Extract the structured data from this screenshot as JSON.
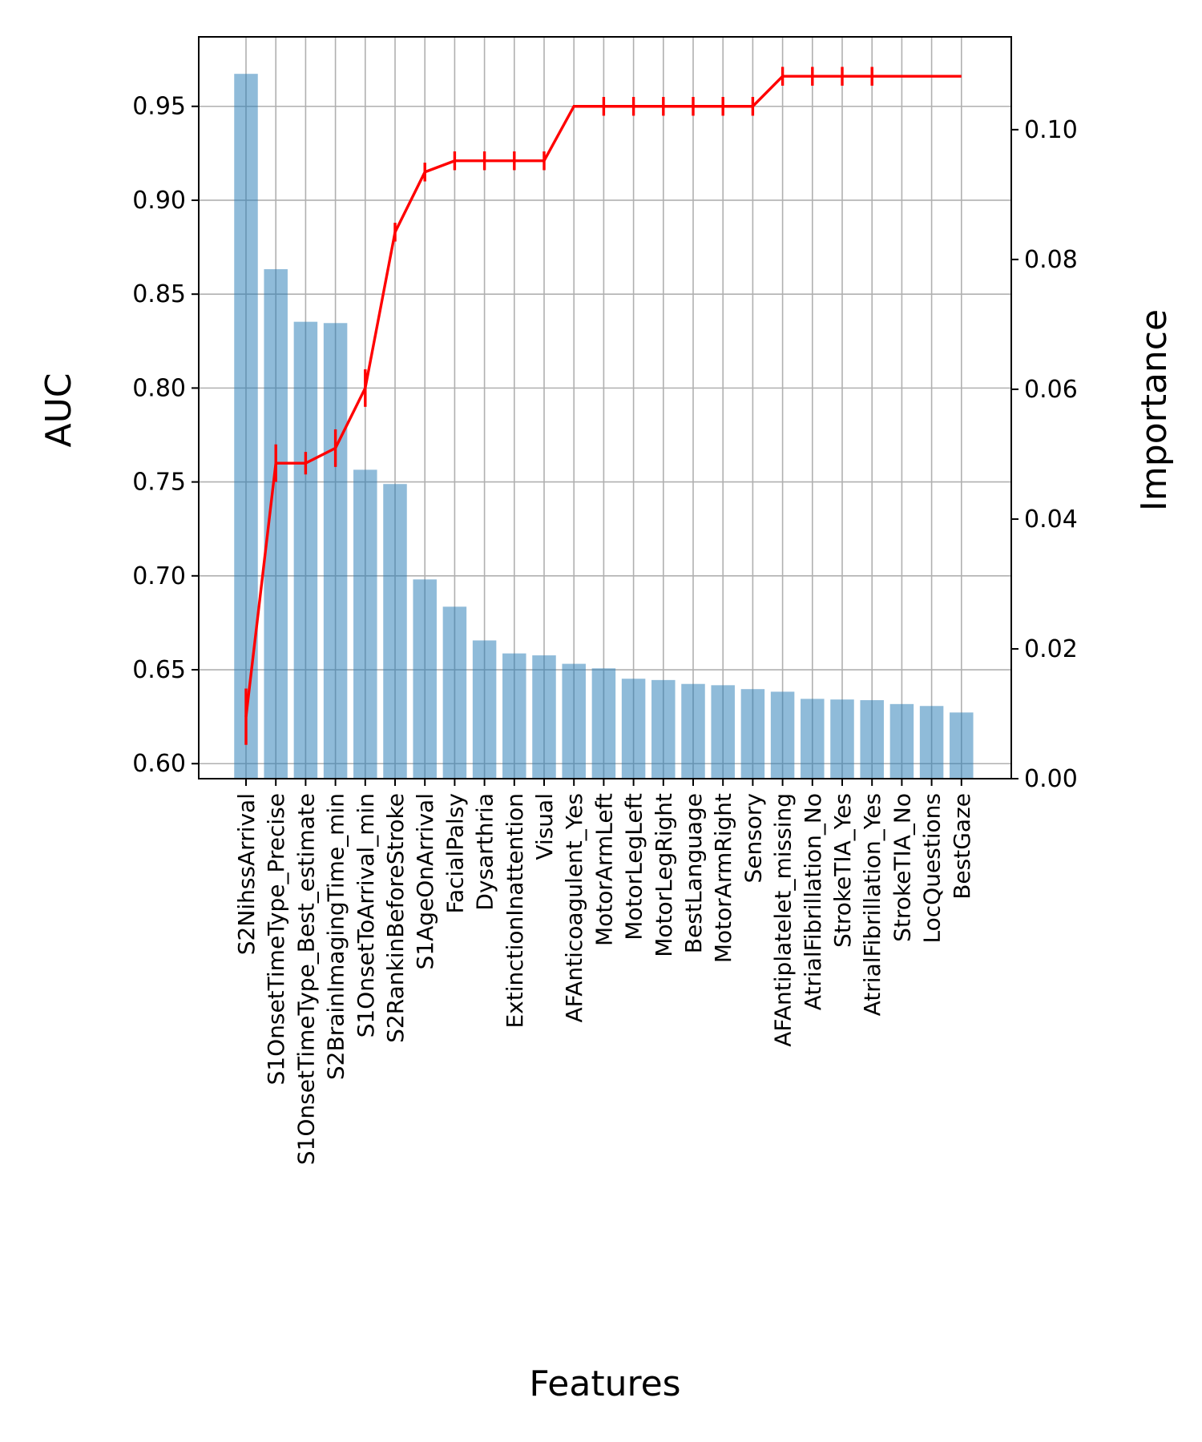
{
  "chart_data": {
    "type": "bar",
    "xlabel": "Features",
    "ylabel": "AUC",
    "y2label": "Importance",
    "categories": [
      "S2NihssArrival",
      "S1OnsetTimeType_Precise",
      "S1OnsetTimeType_Best_estimate",
      "S2BrainImagingTime_min",
      "S1OnsetToArrival_min",
      "S2RankinBeforeStroke",
      "S1AgeOnArrival",
      "FacialPalsy",
      "Dysarthria",
      "ExtinctionInattention",
      "Visual",
      "AFAnticoagulent_Yes",
      "MotorArmLeft",
      "MotorLegLeft",
      "MotorLegRight",
      "BestLanguage",
      "MotorArmRight",
      "Sensory",
      "AFAntiplatelet_missing",
      "AtrialFibrillation_No",
      "StrokeTIA_Yes",
      "AtrialFibrillation_Yes",
      "StrokeTIA_No",
      "LocQuestions",
      "BestGaze"
    ],
    "series": [
      {
        "type": "bar",
        "axis": "right",
        "color": "#1f77b4",
        "opacity": 0.5,
        "values": [
          0.1086,
          0.0785,
          0.0704,
          0.0702,
          0.0476,
          0.0454,
          0.0307,
          0.0265,
          0.0213,
          0.0193,
          0.019,
          0.0177,
          0.017,
          0.0154,
          0.0152,
          0.0146,
          0.0144,
          0.0138,
          0.0134,
          0.0123,
          0.0122,
          0.0121,
          0.0115,
          0.0112,
          0.0102
        ]
      },
      {
        "type": "line",
        "axis": "left",
        "color": "#ff0000",
        "values": [
          0.625,
          0.76,
          0.76,
          0.768,
          0.8,
          0.883,
          0.915,
          0.921,
          0.921,
          0.921,
          0.921,
          0.95,
          0.95,
          0.95,
          0.95,
          0.95,
          0.95,
          0.95,
          0.966,
          0.966,
          0.966,
          0.966,
          0.966,
          0.966,
          0.966
        ],
        "error": [
          0.015,
          0.01,
          0.006,
          0.01,
          0.01,
          0.005,
          0.005,
          0.005,
          0.005,
          0.005,
          0.005,
          0.0,
          0.005,
          0.005,
          0.005,
          0.005,
          0.005,
          0.005,
          0.005,
          0.005,
          0.005,
          0.005,
          0.0,
          0.0,
          0.0
        ]
      }
    ],
    "ylim": [
      0.592,
      0.987
    ],
    "y2lim": [
      0.0,
      0.1143
    ],
    "yticks": [
      "0.60",
      "0.65",
      "0.70",
      "0.75",
      "0.80",
      "0.85",
      "0.90",
      "0.95"
    ],
    "y2ticks": [
      "0.00",
      "0.02",
      "0.04",
      "0.06",
      "0.08",
      "0.10"
    ],
    "grid": true
  }
}
